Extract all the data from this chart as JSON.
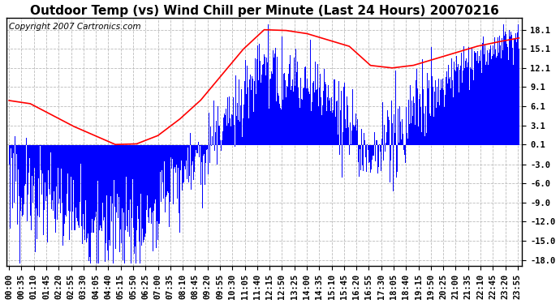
{
  "title": "Outdoor Temp (vs) Wind Chill per Minute (Last 24 Hours) 20070216",
  "copyright_text": "Copyright 2007 Cartronics.com",
  "yticks": [
    18.1,
    15.1,
    12.1,
    9.1,
    6.1,
    3.1,
    0.1,
    -3.0,
    -6.0,
    -9.0,
    -12.0,
    -15.0,
    -18.0
  ],
  "ylim": [
    -19.0,
    20.0
  ],
  "background_color": "#ffffff",
  "plot_bg_color": "#ffffff",
  "grid_color": "#bbbbbb",
  "blue_color": "#0000ff",
  "red_color": "#ff0000",
  "title_fontsize": 11,
  "tick_fontsize": 7.5,
  "copyright_fontsize": 7.5
}
